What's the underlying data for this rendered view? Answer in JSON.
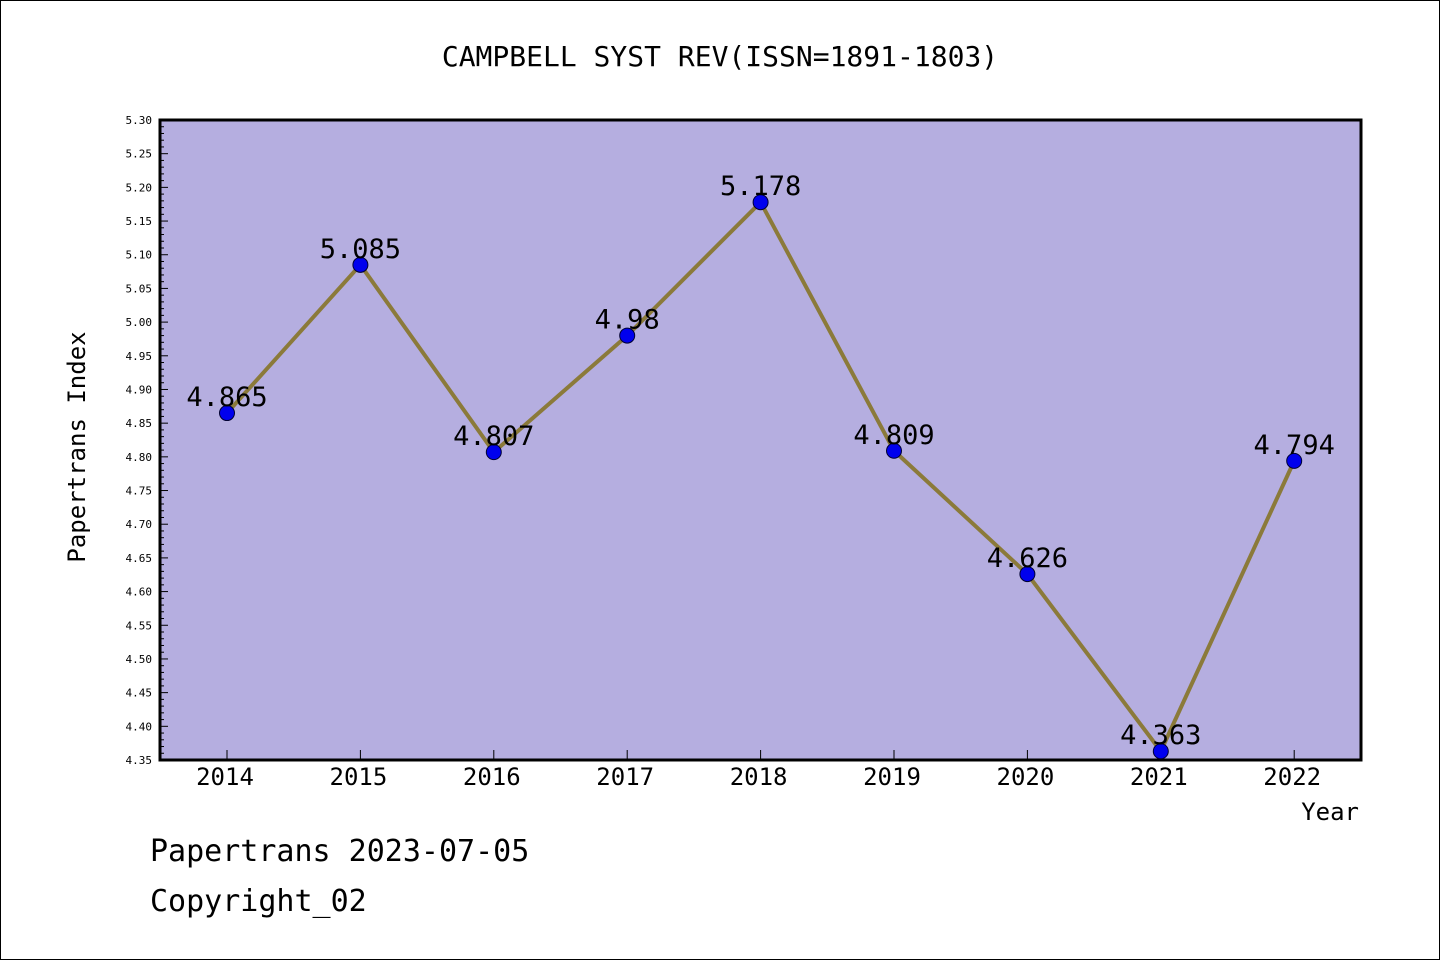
{
  "chart_data": {
    "type": "line",
    "title": "CAMPBELL SYST REV(ISSN=1891-1803)",
    "xlabel": "Year",
    "ylabel": "Papertrans Index",
    "categories": [
      "2014",
      "2015",
      "2016",
      "2017",
      "2018",
      "2019",
      "2020",
      "2021",
      "2022"
    ],
    "values": [
      4.865,
      5.085,
      4.807,
      4.98,
      5.178,
      4.809,
      4.626,
      4.363,
      4.794
    ],
    "data_labels": [
      "4.865",
      "5.085",
      "4.807",
      "4.98",
      "5.178",
      "4.809",
      "4.626",
      "4.363",
      "4.794"
    ],
    "ylim": [
      4.35,
      5.3
    ],
    "yticks": [
      "4.35",
      "4.40",
      "4.45",
      "4.50",
      "4.55",
      "4.60",
      "4.65",
      "4.70",
      "4.75",
      "4.80",
      "4.85",
      "4.90",
      "4.95",
      "5.00",
      "5.05",
      "5.10",
      "5.15",
      "5.20",
      "5.25",
      "5.30"
    ],
    "grid": false,
    "colors": {
      "plot_background": "#b5aee0",
      "line": "#8b7a3a",
      "marker": "#0000ee"
    }
  },
  "footer": {
    "line1": "Papertrans 2023-07-05",
    "line2": "Copyright_02"
  }
}
